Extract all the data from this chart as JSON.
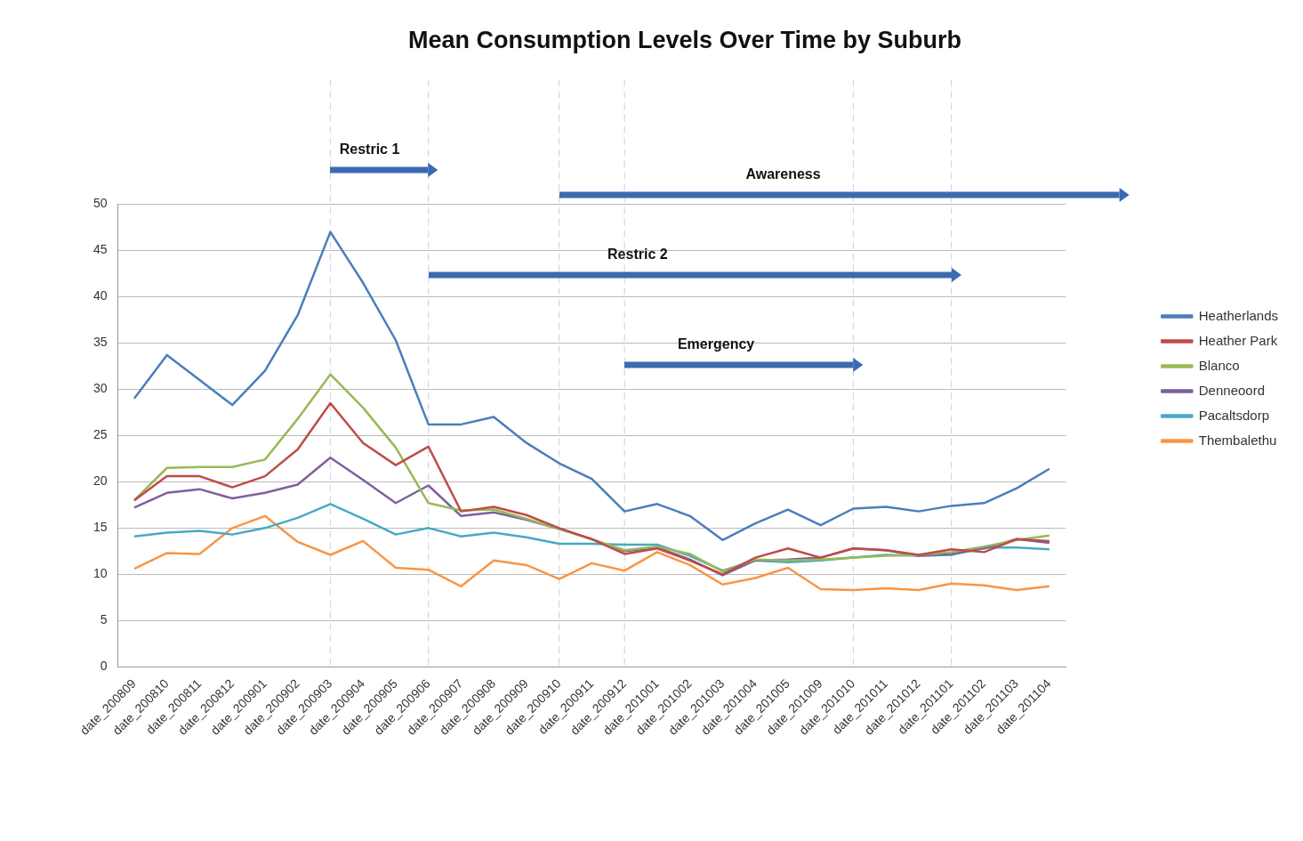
{
  "chart_data": {
    "type": "line",
    "title": "Mean Consumption Levels Over Time by Suburb",
    "categories": [
      "date_200809",
      "date_200810",
      "date_200811",
      "date_200812",
      "date_200901",
      "date_200902",
      "date_200903",
      "date_200904",
      "date_200905",
      "date_200906",
      "date_200907",
      "date_200908",
      "date_200909",
      "date_200910",
      "date_200911",
      "date_200912",
      "date_201001",
      "date_201002",
      "date_201003",
      "date_201004",
      "date_201005",
      "date_201009",
      "date_201010",
      "date_201011",
      "date_201012",
      "date_201101",
      "date_201102",
      "date_201103",
      "date_201104"
    ],
    "series": [
      {
        "name": "Heatherlands",
        "color": "#4a7ebb",
        "values": [
          29,
          33.7,
          31,
          28.3,
          32,
          38,
          47,
          41.5,
          35.3,
          26.2,
          26.2,
          27,
          24.2,
          22,
          20.3,
          16.8,
          17.6,
          16.3,
          13.7,
          15.5,
          17,
          15.3,
          17.1,
          17.3,
          16.8,
          17.4,
          17.7,
          19.3,
          21.4
        ]
      },
      {
        "name": "Heather Park",
        "color": "#be4b48",
        "values": [
          18,
          20.6,
          20.6,
          19.4,
          20.6,
          23.5,
          28.5,
          24.2,
          21.8,
          23.8,
          16.8,
          17.3,
          16.4,
          15,
          13.8,
          12.2,
          12.8,
          11.5,
          10,
          11.8,
          12.8,
          11.8,
          12.8,
          12.6,
          12.1,
          12.7,
          12.4,
          13.8,
          13.6
        ]
      },
      {
        "name": "Blanco",
        "color": "#98b954",
        "values": [
          18,
          21.5,
          21.6,
          21.6,
          22.4,
          26.8,
          31.6,
          28,
          23.7,
          17.7,
          16.9,
          17,
          16,
          14.9,
          13.8,
          12.6,
          13,
          12.2,
          10.3,
          11.6,
          11.5,
          11.6,
          11.8,
          12,
          12.1,
          12.4,
          13,
          13.7,
          14.2
        ]
      },
      {
        "name": "Denneoord",
        "color": "#7d60a0",
        "values": [
          17.2,
          18.8,
          19.2,
          18.2,
          18.8,
          19.7,
          22.6,
          20.2,
          17.7,
          19.6,
          16.3,
          16.7,
          15.9,
          14.9,
          13.8,
          12.5,
          12.9,
          11.6,
          9.9,
          11.5,
          11.6,
          11.8,
          12.8,
          12.6,
          12,
          12.2,
          12.8,
          13.8,
          13.4
        ]
      },
      {
        "name": "Pacaltsdorp",
        "color": "#46aac5",
        "values": [
          14.1,
          14.5,
          14.7,
          14.3,
          15,
          16.1,
          17.6,
          16,
          14.3,
          15,
          14.1,
          14.5,
          14,
          13.3,
          13.3,
          13.2,
          13.2,
          12,
          10.4,
          11.5,
          11.3,
          11.5,
          11.8,
          12.1,
          12,
          12.1,
          12.9,
          12.9,
          12.7
        ]
      },
      {
        "name": "Thembalethu",
        "color": "#f79646",
        "values": [
          10.6,
          12.3,
          12.2,
          15,
          16.3,
          13.5,
          12.1,
          13.6,
          10.7,
          10.5,
          8.7,
          11.5,
          11,
          9.5,
          11.2,
          10.4,
          12.4,
          11,
          8.9,
          9.6,
          10.7,
          8.4,
          8.3,
          8.5,
          8.3,
          9,
          8.8,
          8.3,
          8.7
        ]
      }
    ],
    "ylim": [
      0,
      50
    ],
    "yticks": [
      0,
      5,
      10,
      15,
      20,
      25,
      30,
      35,
      40,
      45,
      50
    ],
    "ref_lines": [
      {
        "axis": "x",
        "value": "date_200903",
        "color": "#d0d8e4",
        "line_style": "dashed"
      },
      {
        "axis": "x",
        "value": "date_200906",
        "color": "#d0d8e4",
        "line_style": "dashed"
      },
      {
        "axis": "x",
        "value": "date_200910",
        "color": "#d0d8e4",
        "line_style": "dashed"
      },
      {
        "axis": "x",
        "value": "date_200912",
        "color": "#d0d8e4",
        "line_style": "dashed"
      },
      {
        "axis": "x",
        "value": "date_201010",
        "color": "#d0d8e4",
        "line_style": "dashed"
      },
      {
        "axis": "x",
        "value": "date_201101",
        "color": "#d0d8e4",
        "line_style": "dashed"
      }
    ],
    "annotations": [
      "Restric 1",
      "Awareness",
      "Restric 2",
      "Emergency"
    ],
    "grid": "y",
    "legend": "right",
    "marker": "none",
    "line_style": "solid"
  }
}
